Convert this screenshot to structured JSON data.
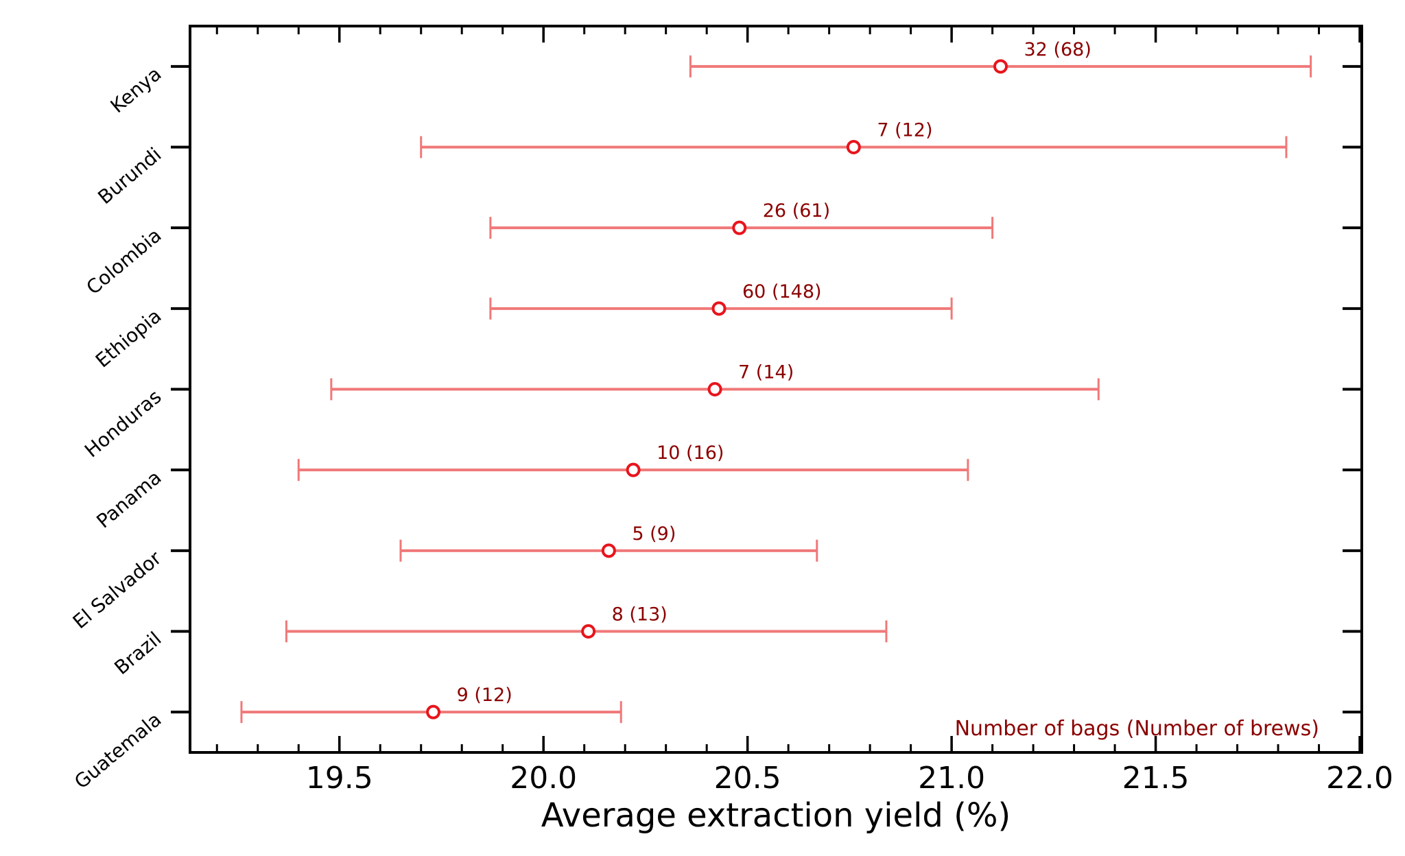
{
  "chart_data": {
    "type": "errorbar",
    "orientation": "horizontal",
    "xlabel": "Average extraction yield (%)",
    "ylabel": "",
    "xlim": [
      19.134,
      22.005
    ],
    "xticks": [
      19.5,
      20.0,
      20.5,
      21.0,
      21.5,
      22.0
    ],
    "xtick_labels": [
      "19.5",
      "20.0",
      "20.5",
      "21.0",
      "21.5",
      "22.0"
    ],
    "minor_tick_step": 0.1,
    "grid": false,
    "annotation_note": "Number of bags (Number of brews)",
    "colors": {
      "errorbar": "#f07878",
      "marker": "#e8141c",
      "annotation": "#8b0000",
      "axis": "#000000"
    },
    "categories": [
      "Kenya",
      "Burundi",
      "Colombia",
      "Ethiopia",
      "Honduras",
      "Panama",
      "El Salvador",
      "Brazil",
      "Guatemala"
    ],
    "values": [
      21.12,
      20.76,
      20.48,
      20.43,
      20.42,
      20.22,
      20.16,
      20.11,
      19.73
    ],
    "lower": [
      20.36,
      19.7,
      19.87,
      19.87,
      19.48,
      19.4,
      19.65,
      19.37,
      19.26
    ],
    "upper": [
      21.88,
      21.82,
      21.1,
      21.0,
      21.36,
      21.04,
      20.67,
      20.84,
      20.19
    ],
    "labels": [
      "32 (68)",
      "7 (12)",
      "26 (61)",
      "60 (148)",
      "7 (14)",
      "10 (16)",
      "5 (9)",
      "8 (13)",
      "9 (12)"
    ]
  }
}
